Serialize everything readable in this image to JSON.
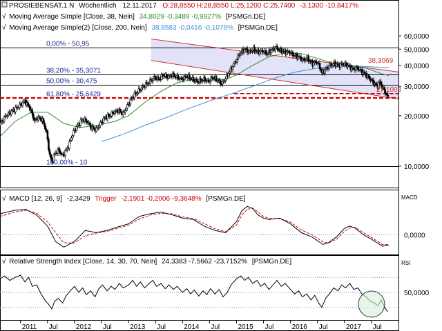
{
  "header": {
    "symbol": "PROSIEBENSAT.1 N",
    "interval": "Wöchentlich",
    "date": "12.11.2017",
    "ohlc": "O:28,8550 H:28,8550 L:25,1200 C:25,7400",
    "change": "-3,1300 -10,8417%"
  },
  "indicators": {
    "ma38": {
      "label": "Moving Average Simple [Close, 38, Nein]",
      "values": "34,8029 -0,3489 -0,9927%",
      "source": "[PSMGn.DE]",
      "color": "#2e8b2e"
    },
    "ma200": {
      "label": "Moving Average Simple(2) [Close, 200, Nein]",
      "values": "38,6583 -0,0416 -0,1076%",
      "source": "[PSMGn.DE]",
      "color": "#3a8fd6"
    },
    "macd": {
      "label": "MACD [12, 26, 9]",
      "value": "-2,3429",
      "trigger_label": "Trigger",
      "trigger_values": "-2,1901 -0,2006 -9,3648%",
      "source": "[PSMGn.DE]",
      "pane_tag": "MACD",
      "color": "#000000",
      "trigger_color": "#cc0000"
    },
    "rsi": {
      "label": "Relative Strength Index [Close, 14, 30, 70, Nein]",
      "values": "24,3383 -7,5662 -23,7152%",
      "source": "[PSMGn.DE]",
      "pane_tag": "RSI"
    }
  },
  "fib_levels": [
    {
      "label": "0,00% - 50,95",
      "value": 50.95
    },
    {
      "label": "38,20% - 35,3071",
      "value": 35.3071
    },
    {
      "label": "50,00% - 30,475",
      "value": 30.475
    },
    {
      "label": "61,80% - 25,6429",
      "value": 25.6429
    },
    {
      "label": "100,00% - 10",
      "value": 10
    }
  ],
  "annotations": {
    "channel_upper": "38,3069",
    "last_level": "27,1003"
  },
  "chart_data": {
    "type": "line",
    "scale": "log",
    "ylim": [
      8.5,
      66
    ],
    "yticks": [
      {
        "label": "60,0000",
        "value": 60
      },
      {
        "label": "50,0000",
        "value": 50
      },
      {
        "label": "40,0000",
        "value": 40
      },
      {
        "label": "30,0000",
        "value": 30
      },
      {
        "label": "20,0000",
        "value": 20
      },
      {
        "label": "10,0000",
        "value": 10
      }
    ],
    "xticks": [
      {
        "label": "2011",
        "t": 2011.0
      },
      {
        "label": "Jul",
        "t": 2011.5
      },
      {
        "label": "2012",
        "t": 2012.0
      },
      {
        "label": "Jul",
        "t": 2012.5
      },
      {
        "label": "2013",
        "t": 2013.0
      },
      {
        "label": "Jul",
        "t": 2013.5
      },
      {
        "label": "2014",
        "t": 2014.0
      },
      {
        "label": "Jul",
        "t": 2014.5
      },
      {
        "label": "2015",
        "t": 2015.0
      },
      {
        "label": "Jul",
        "t": 2015.5
      },
      {
        "label": "2016",
        "t": 2016.0
      },
      {
        "label": "Jul",
        "t": 2016.5
      },
      {
        "label": "2017",
        "t": 2017.0
      },
      {
        "label": "Jul",
        "t": 2017.5
      }
    ],
    "xlim": [
      2010.62,
      2018.0
    ],
    "price": [
      [
        2010.62,
        17.5
      ],
      [
        2010.75,
        20
      ],
      [
        2010.88,
        21.5
      ],
      [
        2011.0,
        23
      ],
      [
        2011.1,
        24.5
      ],
      [
        2011.2,
        22
      ],
      [
        2011.28,
        18.5
      ],
      [
        2011.33,
        19.5
      ],
      [
        2011.42,
        19
      ],
      [
        2011.5,
        16
      ],
      [
        2011.55,
        12
      ],
      [
        2011.6,
        10.5
      ],
      [
        2011.65,
        11.8
      ],
      [
        2011.72,
        12.5
      ],
      [
        2011.8,
        11.5
      ],
      [
        2011.9,
        13
      ],
      [
        2012.0,
        16
      ],
      [
        2012.08,
        17.5
      ],
      [
        2012.17,
        19
      ],
      [
        2012.25,
        18.5
      ],
      [
        2012.33,
        17
      ],
      [
        2012.42,
        16.5
      ],
      [
        2012.5,
        18
      ],
      [
        2012.58,
        19.5
      ],
      [
        2012.67,
        20
      ],
      [
        2012.75,
        21
      ],
      [
        2012.83,
        21.5
      ],
      [
        2012.92,
        20.5
      ],
      [
        2013.0,
        23
      ],
      [
        2013.1,
        26
      ],
      [
        2013.2,
        28
      ],
      [
        2013.3,
        30
      ],
      [
        2013.42,
        32
      ],
      [
        2013.5,
        34
      ],
      [
        2013.58,
        33
      ],
      [
        2013.67,
        35
      ],
      [
        2013.75,
        34
      ],
      [
        2013.83,
        35
      ],
      [
        2013.92,
        34
      ],
      [
        2014.0,
        33
      ],
      [
        2014.1,
        34.5
      ],
      [
        2014.2,
        33
      ],
      [
        2014.3,
        32
      ],
      [
        2014.42,
        33
      ],
      [
        2014.5,
        32
      ],
      [
        2014.58,
        34
      ],
      [
        2014.67,
        32.5
      ],
      [
        2014.75,
        31
      ],
      [
        2014.83,
        34
      ],
      [
        2014.92,
        38
      ],
      [
        2015.0,
        42
      ],
      [
        2015.08,
        47
      ],
      [
        2015.17,
        50
      ],
      [
        2015.25,
        48
      ],
      [
        2015.33,
        50
      ],
      [
        2015.42,
        48
      ],
      [
        2015.5,
        49
      ],
      [
        2015.58,
        47
      ],
      [
        2015.67,
        49.5
      ],
      [
        2015.75,
        51
      ],
      [
        2015.83,
        49
      ],
      [
        2015.92,
        48
      ],
      [
        2016.0,
        48
      ],
      [
        2016.08,
        46
      ],
      [
        2016.17,
        45
      ],
      [
        2016.25,
        43
      ],
      [
        2016.33,
        44
      ],
      [
        2016.42,
        41
      ],
      [
        2016.5,
        42
      ],
      [
        2016.55,
        40
      ],
      [
        2016.6,
        36
      ],
      [
        2016.67,
        38
      ],
      [
        2016.75,
        40
      ],
      [
        2016.83,
        41
      ],
      [
        2016.92,
        40
      ],
      [
        2017.0,
        41
      ],
      [
        2017.08,
        40
      ],
      [
        2017.17,
        38
      ],
      [
        2017.25,
        38.5
      ],
      [
        2017.33,
        37
      ],
      [
        2017.42,
        35
      ],
      [
        2017.5,
        33
      ],
      [
        2017.58,
        31
      ],
      [
        2017.63,
        30
      ],
      [
        2017.67,
        32
      ],
      [
        2017.72,
        29.5
      ],
      [
        2017.78,
        27.5
      ],
      [
        2017.82,
        25.7
      ]
    ],
    "ma38": [
      [
        2010.62,
        15
      ],
      [
        2010.9,
        18.5
      ],
      [
        2011.2,
        21
      ],
      [
        2011.5,
        21
      ],
      [
        2011.8,
        18
      ],
      [
        2012.1,
        17
      ],
      [
        2012.4,
        17.5
      ],
      [
        2012.75,
        18.5
      ],
      [
        2013.0,
        20
      ],
      [
        2013.3,
        24
      ],
      [
        2013.6,
        28
      ],
      [
        2013.9,
        31.5
      ],
      [
        2014.2,
        33
      ],
      [
        2014.5,
        33
      ],
      [
        2014.8,
        33
      ],
      [
        2015.0,
        35
      ],
      [
        2015.3,
        40
      ],
      [
        2015.6,
        45
      ],
      [
        2015.9,
        47.5
      ],
      [
        2016.2,
        47
      ],
      [
        2016.5,
        44
      ],
      [
        2016.8,
        41
      ],
      [
        2017.1,
        40
      ],
      [
        2017.4,
        38.5
      ],
      [
        2017.7,
        35.5
      ],
      [
        2017.82,
        34.8
      ]
    ],
    "ma200": [
      [
        2012.5,
        14
      ],
      [
        2012.9,
        15.5
      ],
      [
        2013.3,
        17.5
      ],
      [
        2013.7,
        19.5
      ],
      [
        2014.1,
        22
      ],
      [
        2014.5,
        24.5
      ],
      [
        2014.9,
        27
      ],
      [
        2015.3,
        30
      ],
      [
        2015.7,
        33.5
      ],
      [
        2016.1,
        36.5
      ],
      [
        2016.5,
        38.5
      ],
      [
        2016.9,
        39.5
      ],
      [
        2017.3,
        39.5
      ],
      [
        2017.6,
        39
      ],
      [
        2017.82,
        38.66
      ]
    ],
    "channel": {
      "upper": [
        [
          2013.42,
          57.5
        ],
        [
          2018.0,
          36.5
        ]
      ],
      "lower": [
        [
          2013.42,
          42.8
        ],
        [
          2018.0,
          25.2
        ]
      ]
    },
    "resistance_lines": [
      {
        "from": 2010.62,
        "to": 2018.0,
        "value": 25.6429
      },
      {
        "from": 2014.95,
        "to": 2018.0,
        "value": 27.1003
      }
    ],
    "macd": {
      "range": [
        -4,
        7
      ],
      "zero_label": "0,0000",
      "line": [
        [
          2010.62,
          4.8
        ],
        [
          2010.9,
          5.6
        ],
        [
          2011.1,
          5.8
        ],
        [
          2011.3,
          4.5
        ],
        [
          2011.5,
          2
        ],
        [
          2011.65,
          -1.5
        ],
        [
          2011.8,
          -2.8
        ],
        [
          2012.0,
          -1.5
        ],
        [
          2012.2,
          1
        ],
        [
          2012.4,
          0.5
        ],
        [
          2012.6,
          1
        ],
        [
          2012.8,
          1.8
        ],
        [
          2013.0,
          2.5
        ],
        [
          2013.2,
          4.2
        ],
        [
          2013.4,
          4.8
        ],
        [
          2013.6,
          5.2
        ],
        [
          2013.8,
          4.6
        ],
        [
          2014.0,
          3.8
        ],
        [
          2014.2,
          3.5
        ],
        [
          2014.4,
          2
        ],
        [
          2014.6,
          1
        ],
        [
          2014.8,
          0.5
        ],
        [
          2015.0,
          3
        ],
        [
          2015.1,
          5.5
        ],
        [
          2015.2,
          6.5
        ],
        [
          2015.3,
          6
        ],
        [
          2015.4,
          4.5
        ],
        [
          2015.5,
          3.8
        ],
        [
          2015.6,
          3.5
        ],
        [
          2015.8,
          3.8
        ],
        [
          2016.0,
          2.5
        ],
        [
          2016.2,
          0.5
        ],
        [
          2016.4,
          -0.5
        ],
        [
          2016.6,
          -2.2
        ],
        [
          2016.7,
          -1.8
        ],
        [
          2016.85,
          -0.5
        ],
        [
          2017.0,
          1.5
        ],
        [
          2017.1,
          2
        ],
        [
          2017.2,
          1.5
        ],
        [
          2017.35,
          0
        ],
        [
          2017.5,
          -1
        ],
        [
          2017.6,
          -1.8
        ],
        [
          2017.7,
          -2.6
        ],
        [
          2017.82,
          -2.34
        ]
      ],
      "trigger": [
        [
          2010.62,
          4.2
        ],
        [
          2010.9,
          5.2
        ],
        [
          2011.1,
          5.6
        ],
        [
          2011.3,
          4.9
        ],
        [
          2011.5,
          3
        ],
        [
          2011.65,
          0.5
        ],
        [
          2011.8,
          -1.8
        ],
        [
          2012.0,
          -1.9
        ],
        [
          2012.2,
          -0.2
        ],
        [
          2012.4,
          0.4
        ],
        [
          2012.6,
          0.8
        ],
        [
          2012.8,
          1.5
        ],
        [
          2013.0,
          2.2
        ],
        [
          2013.2,
          3.6
        ],
        [
          2013.4,
          4.5
        ],
        [
          2013.6,
          4.9
        ],
        [
          2013.8,
          4.8
        ],
        [
          2014.0,
          4.1
        ],
        [
          2014.2,
          3.7
        ],
        [
          2014.4,
          2.6
        ],
        [
          2014.6,
          1.4
        ],
        [
          2014.8,
          0.7
        ],
        [
          2015.0,
          2.2
        ],
        [
          2015.1,
          4.5
        ],
        [
          2015.2,
          5.8
        ],
        [
          2015.3,
          6.1
        ],
        [
          2015.4,
          5.2
        ],
        [
          2015.5,
          4.2
        ],
        [
          2015.6,
          3.7
        ],
        [
          2015.8,
          3.7
        ],
        [
          2016.0,
          2.9
        ],
        [
          2016.2,
          1.1
        ],
        [
          2016.4,
          0
        ],
        [
          2016.6,
          -1.6
        ],
        [
          2016.7,
          -1.9
        ],
        [
          2016.85,
          -1
        ],
        [
          2017.0,
          0.8
        ],
        [
          2017.1,
          1.6
        ],
        [
          2017.2,
          1.7
        ],
        [
          2017.35,
          0.5
        ],
        [
          2017.5,
          -0.6
        ],
        [
          2017.6,
          -1.4
        ],
        [
          2017.7,
          -2.2
        ],
        [
          2017.82,
          -2.19
        ]
      ]
    },
    "rsi": {
      "range": [
        15,
        85
      ],
      "level_labels": [
        {
          "label": "50,0000",
          "value": 50
        }
      ],
      "line": [
        [
          2010.62,
          68
        ],
        [
          2010.7,
          72
        ],
        [
          2010.8,
          66
        ],
        [
          2010.9,
          70
        ],
        [
          2011.0,
          73
        ],
        [
          2011.08,
          64
        ],
        [
          2011.15,
          70
        ],
        [
          2011.22,
          58
        ],
        [
          2011.3,
          60
        ],
        [
          2011.38,
          48
        ],
        [
          2011.45,
          40
        ],
        [
          2011.52,
          34
        ],
        [
          2011.58,
          28
        ],
        [
          2011.63,
          38
        ],
        [
          2011.7,
          42
        ],
        [
          2011.78,
          36
        ],
        [
          2011.85,
          46
        ],
        [
          2011.92,
          52
        ],
        [
          2012.0,
          58
        ],
        [
          2012.08,
          50
        ],
        [
          2012.15,
          56
        ],
        [
          2012.22,
          47
        ],
        [
          2012.3,
          52
        ],
        [
          2012.38,
          44
        ],
        [
          2012.45,
          55
        ],
        [
          2012.52,
          60
        ],
        [
          2012.6,
          52
        ],
        [
          2012.68,
          58
        ],
        [
          2012.75,
          54
        ],
        [
          2012.83,
          62
        ],
        [
          2012.9,
          56
        ],
        [
          2013.0,
          60
        ],
        [
          2013.08,
          66
        ],
        [
          2013.15,
          58
        ],
        [
          2013.22,
          64
        ],
        [
          2013.3,
          56
        ],
        [
          2013.38,
          62
        ],
        [
          2013.45,
          66
        ],
        [
          2013.52,
          58
        ],
        [
          2013.6,
          62
        ],
        [
          2013.68,
          55
        ],
        [
          2013.75,
          60
        ],
        [
          2013.83,
          54
        ],
        [
          2013.9,
          58
        ],
        [
          2014.0,
          50
        ],
        [
          2014.08,
          55
        ],
        [
          2014.15,
          48
        ],
        [
          2014.22,
          53
        ],
        [
          2014.3,
          45
        ],
        [
          2014.38,
          52
        ],
        [
          2014.45,
          47
        ],
        [
          2014.52,
          55
        ],
        [
          2014.6,
          48
        ],
        [
          2014.68,
          54
        ],
        [
          2014.75,
          44
        ],
        [
          2014.83,
          50
        ],
        [
          2014.9,
          60
        ],
        [
          2015.0,
          68
        ],
        [
          2015.08,
          72
        ],
        [
          2015.15,
          66
        ],
        [
          2015.22,
          70
        ],
        [
          2015.3,
          62
        ],
        [
          2015.38,
          66
        ],
        [
          2015.45,
          58
        ],
        [
          2015.52,
          62
        ],
        [
          2015.6,
          54
        ],
        [
          2015.68,
          60
        ],
        [
          2015.75,
          66
        ],
        [
          2015.83,
          58
        ],
        [
          2015.9,
          62
        ],
        [
          2016.0,
          54
        ],
        [
          2016.08,
          48
        ],
        [
          2016.15,
          52
        ],
        [
          2016.22,
          44
        ],
        [
          2016.3,
          48
        ],
        [
          2016.38,
          40
        ],
        [
          2016.45,
          46
        ],
        [
          2016.52,
          36
        ],
        [
          2016.58,
          30
        ],
        [
          2016.65,
          42
        ],
        [
          2016.72,
          48
        ],
        [
          2016.8,
          56
        ],
        [
          2016.88,
          52
        ],
        [
          2016.95,
          60
        ],
        [
          2017.02,
          56
        ],
        [
          2017.1,
          62
        ],
        [
          2017.17,
          54
        ],
        [
          2017.25,
          56
        ],
        [
          2017.32,
          48
        ],
        [
          2017.4,
          44
        ],
        [
          2017.48,
          38
        ],
        [
          2017.55,
          36
        ],
        [
          2017.62,
          32
        ],
        [
          2017.68,
          40
        ],
        [
          2017.74,
          30
        ],
        [
          2017.8,
          24.3
        ]
      ]
    }
  }
}
